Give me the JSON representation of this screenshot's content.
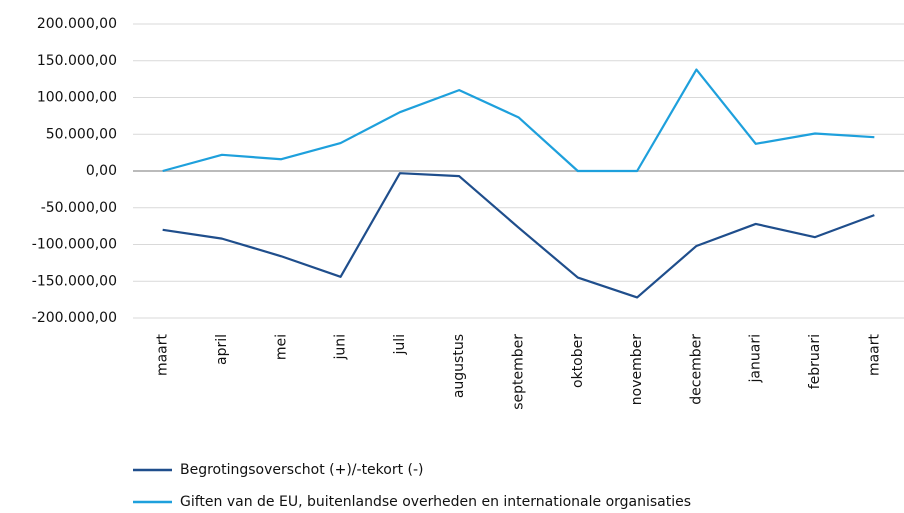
{
  "chart_data": {
    "type": "line",
    "categories": [
      "maart",
      "april",
      "mei",
      "juni",
      "juli",
      "augustus",
      "september",
      "oktober",
      "november",
      "december",
      "januari",
      "februari",
      "maart"
    ],
    "series": [
      {
        "name": "Begrotingsoverschot (+)/-tekort (-)",
        "color": "#1f4e8c",
        "values": [
          -80000,
          -92000,
          -116000,
          -144000,
          -3000,
          -7000,
          -77000,
          -145000,
          -172000,
          -102000,
          -72000,
          -90000,
          -60000
        ]
      },
      {
        "name": "Giften van de EU, buitenlandse overheden en internationale organisaties",
        "color": "#1ea0dc",
        "values": [
          0,
          22000,
          16000,
          38000,
          80000,
          110000,
          73000,
          0,
          0,
          138000,
          37000,
          51000,
          46000
        ]
      }
    ],
    "ylim": [
      -200000,
      200000
    ],
    "yticks": [
      {
        "value": -200000,
        "label": "-200.000,00"
      },
      {
        "value": -150000,
        "label": "-150.000,00"
      },
      {
        "value": -100000,
        "label": "-100.000,00"
      },
      {
        "value": -50000,
        "label": "-50.000,00"
      },
      {
        "value": 0,
        "label": "0,00"
      },
      {
        "value": 50000,
        "label": "50.000,00"
      },
      {
        "value": 100000,
        "label": "100.000,00"
      },
      {
        "value": 150000,
        "label": "150.000,00"
      },
      {
        "value": 200000,
        "label": "200.000,00"
      }
    ],
    "grid": true,
    "legend": "bottom"
  }
}
